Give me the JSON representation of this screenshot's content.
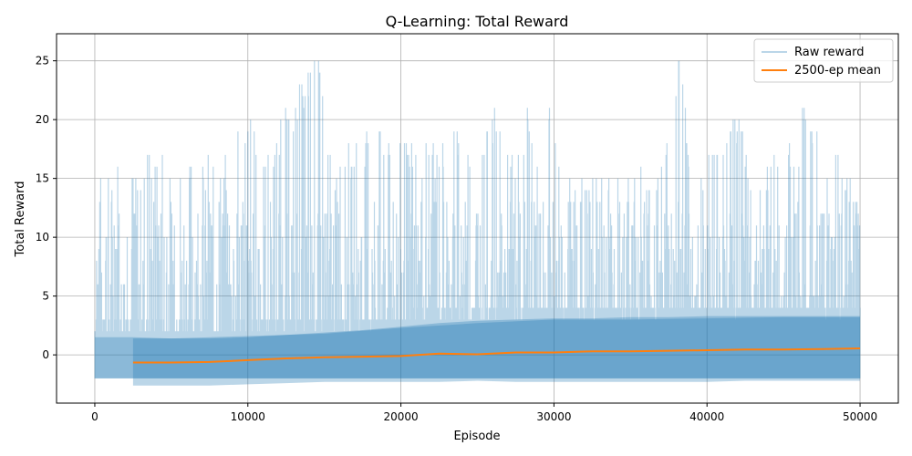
{
  "chart_data": {
    "type": "line",
    "title": "Q-Learning: Total Reward",
    "xlabel": "Episode",
    "ylabel": "Total Reward",
    "xlim": [
      -2500,
      52500
    ],
    "ylim": [
      -4.1,
      27.3
    ],
    "xticks": [
      0,
      10000,
      20000,
      30000,
      40000,
      50000
    ],
    "yticks": [
      0,
      5,
      10,
      15,
      20,
      25
    ],
    "grid": true,
    "legend_position": "top-right",
    "series": [
      {
        "name": "Raw reward",
        "color": "#1f77b4",
        "alpha": 0.3,
        "x_range": [
          0,
          50000
        ],
        "lower_envelope": [
          [
            0,
            -2
          ],
          [
            50000,
            -2
          ]
        ],
        "upper_envelope": [
          [
            0,
            4
          ],
          [
            100,
            17
          ],
          [
            400,
            16
          ],
          [
            1000,
            16
          ],
          [
            2000,
            17
          ],
          [
            3000,
            16
          ],
          [
            4000,
            18
          ],
          [
            5000,
            18
          ],
          [
            6000,
            17
          ],
          [
            7000,
            17
          ],
          [
            8000,
            16
          ],
          [
            9000,
            18
          ],
          [
            10200,
            21
          ],
          [
            11000,
            16
          ],
          [
            12000,
            20
          ],
          [
            13000,
            22
          ],
          [
            14600,
            26
          ],
          [
            15500,
            16
          ],
          [
            16500,
            18
          ],
          [
            18000,
            19
          ],
          [
            18500,
            22
          ],
          [
            19500,
            17
          ],
          [
            20500,
            19
          ],
          [
            21500,
            18
          ],
          [
            22500,
            18
          ],
          [
            24000,
            20
          ],
          [
            25000,
            17
          ],
          [
            26300,
            22
          ],
          [
            27500,
            17
          ],
          [
            28300,
            21
          ],
          [
            29000,
            17
          ],
          [
            29800,
            23
          ],
          [
            30500,
            17
          ],
          [
            31500,
            15
          ],
          [
            32500,
            16
          ],
          [
            33500,
            16
          ],
          [
            34500,
            15
          ],
          [
            35500,
            17
          ],
          [
            36500,
            14
          ],
          [
            37500,
            20
          ],
          [
            38200,
            26
          ],
          [
            39000,
            17
          ],
          [
            40000,
            17
          ],
          [
            41000,
            19
          ],
          [
            42000,
            21
          ],
          [
            43000,
            16
          ],
          [
            44000,
            16
          ],
          [
            45000,
            20
          ],
          [
            46000,
            17
          ],
          [
            46300,
            23
          ],
          [
            47000,
            20
          ],
          [
            47500,
            18
          ],
          [
            48500,
            17
          ],
          [
            49500,
            16
          ],
          [
            50000,
            12
          ]
        ],
        "dense_band": [
          [
            0,
            -2,
            1.5
          ],
          [
            2500,
            -2,
            1.5
          ],
          [
            5000,
            -2,
            1.4
          ],
          [
            10000,
            -2,
            1.6
          ],
          [
            15000,
            -2,
            1.8
          ],
          [
            20000,
            -2,
            2.3
          ],
          [
            25000,
            -2,
            2.7
          ],
          [
            30000,
            -2,
            3.0
          ],
          [
            35000,
            -2,
            3.0
          ],
          [
            40000,
            -2,
            3.1
          ],
          [
            45000,
            -2,
            3.2
          ],
          [
            50000,
            -2,
            3.2
          ]
        ]
      },
      {
        "name": "2500-ep mean",
        "color": "#ff7f0e",
        "x": [
          2500,
          5000,
          7500,
          10000,
          12500,
          15000,
          17500,
          20000,
          22500,
          25000,
          27500,
          30000,
          32500,
          35000,
          37500,
          40000,
          42500,
          45000,
          47500,
          50000
        ],
        "values": [
          -0.65,
          -0.65,
          -0.6,
          -0.45,
          -0.3,
          -0.2,
          -0.15,
          -0.1,
          0.1,
          0.05,
          0.2,
          0.2,
          0.3,
          0.3,
          0.35,
          0.4,
          0.45,
          0.45,
          0.5,
          0.55
        ],
        "band": {
          "color": "#1f77b4",
          "alpha": 0.3,
          "lower": [
            -2.6,
            -2.6,
            -2.6,
            -2.5,
            -2.4,
            -2.3,
            -2.3,
            -2.3,
            -2.3,
            -2.2,
            -2.3,
            -2.3,
            -2.3,
            -2.3,
            -2.3,
            -2.3,
            -2.2,
            -2.2,
            -2.2,
            -2.2
          ],
          "upper": [
            1.4,
            1.4,
            1.4,
            1.5,
            1.7,
            1.9,
            2.1,
            2.4,
            2.7,
            2.9,
            3.0,
            3.1,
            3.1,
            3.2,
            3.2,
            3.3,
            3.3,
            3.3,
            3.3,
            3.3
          ]
        }
      }
    ]
  }
}
